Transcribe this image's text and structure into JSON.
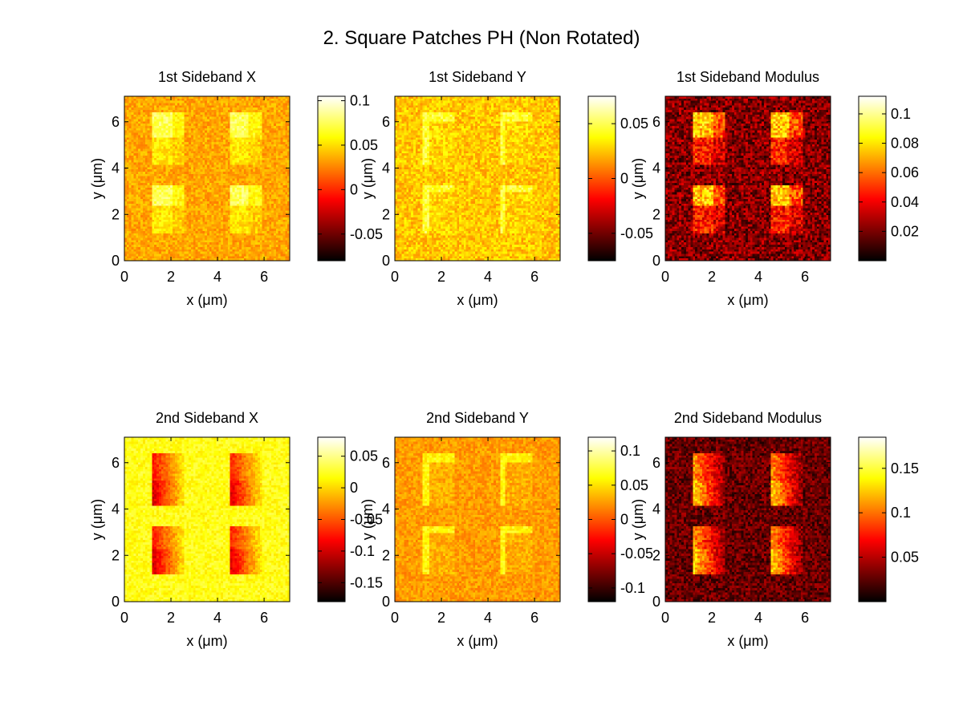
{
  "figure": {
    "title": "2. Square Patches PH (Non Rotated)",
    "colormap": "hot",
    "colormap_stops": [
      "#000000",
      "#ff0000",
      "#ffff00",
      "#ffffff"
    ],
    "background": "#ffffff"
  },
  "chart_data": [
    {
      "type": "heatmap",
      "title": "1st Sideband X",
      "xlabel": "x (µm)",
      "ylabel": "y (µm)",
      "xlim": [
        0,
        7.1
      ],
      "ylim": [
        7.1,
        0
      ],
      "xticks": [
        0,
        2,
        4,
        6
      ],
      "yticks": [
        0,
        2,
        4,
        6
      ],
      "clim": [
        -0.08,
        0.105
      ],
      "cbar_ticks": [
        {
          "v": 0.1,
          "t": "0.1"
        },
        {
          "v": 0.05,
          "t": "0.05"
        },
        {
          "v": 0,
          "t": "0"
        },
        {
          "v": -0.05,
          "t": "-0.05"
        }
      ],
      "features": {
        "base": 0.035,
        "noise": 0.012,
        "patch_value": 0.075,
        "patch_mode": "x1"
      }
    },
    {
      "type": "heatmap",
      "title": "1st Sideband Y",
      "xlabel": "x (µm)",
      "ylabel": "y (µm)",
      "xlim": [
        0,
        7.1
      ],
      "ylim": [
        7.1,
        0
      ],
      "xticks": [
        0,
        2,
        4,
        6
      ],
      "yticks": [
        0,
        2,
        4,
        6
      ],
      "clim": [
        -0.075,
        0.075
      ],
      "cbar_ticks": [
        {
          "v": 0.05,
          "t": "0.05"
        },
        {
          "v": 0,
          "t": "0"
        },
        {
          "v": -0.05,
          "t": "-0.05"
        }
      ],
      "features": {
        "base": 0.025,
        "noise": 0.012,
        "patch_value": 0.045,
        "patch_mode": "edge"
      }
    },
    {
      "type": "heatmap",
      "title": "1st Sideband Modulus",
      "xlabel": "x (µm)",
      "ylabel": "y (µm)",
      "xlim": [
        0,
        7.1
      ],
      "ylim": [
        7.1,
        0
      ],
      "xticks": [
        0,
        2,
        4,
        6
      ],
      "yticks": [
        0,
        2,
        4,
        6
      ],
      "clim": [
        0,
        0.112
      ],
      "cbar_ticks": [
        {
          "v": 0.1,
          "t": "0.1"
        },
        {
          "v": 0.08,
          "t": "0.08"
        },
        {
          "v": 0.06,
          "t": "0.06"
        },
        {
          "v": 0.04,
          "t": "0.04"
        },
        {
          "v": 0.02,
          "t": "0.02"
        }
      ],
      "features": {
        "base": 0.022,
        "noise": 0.016,
        "patch_value": 0.075,
        "patch_mode": "x1"
      }
    },
    {
      "type": "heatmap",
      "title": "2nd Sideband X",
      "xlabel": "x (µm)",
      "ylabel": "y (µm)",
      "xlim": [
        0,
        7.1
      ],
      "ylim": [
        7.1,
        0
      ],
      "xticks": [
        0,
        2,
        4,
        6
      ],
      "yticks": [
        0,
        2,
        4,
        6
      ],
      "clim": [
        -0.18,
        0.08
      ],
      "cbar_ticks": [
        {
          "v": 0.05,
          "t": "0.05"
        },
        {
          "v": 0,
          "t": "0"
        },
        {
          "v": -0.05,
          "t": "-0.05"
        },
        {
          "v": -0.1,
          "t": "-0.1"
        },
        {
          "v": -0.15,
          "t": "-0.15"
        }
      ],
      "features": {
        "base": 0.02,
        "noise": 0.015,
        "patch_value": -0.1,
        "patch_mode": "x2"
      }
    },
    {
      "type": "heatmap",
      "title": "2nd Sideband Y",
      "xlabel": "x (µm)",
      "ylabel": "y (µm)",
      "xlim": [
        0,
        7.1
      ],
      "ylim": [
        7.1,
        0
      ],
      "xticks": [
        0,
        2,
        4,
        6
      ],
      "yticks": [
        0,
        2,
        4,
        6
      ],
      "clim": [
        -0.12,
        0.12
      ],
      "cbar_ticks": [
        {
          "v": 0.1,
          "t": "0.1"
        },
        {
          "v": 0.05,
          "t": "0.05"
        },
        {
          "v": 0,
          "t": "0"
        },
        {
          "v": -0.05,
          "t": "-0.05"
        },
        {
          "v": -0.1,
          "t": "-0.1"
        }
      ],
      "features": {
        "base": 0.025,
        "noise": 0.014,
        "patch_value": 0.06,
        "patch_mode": "edge"
      }
    },
    {
      "type": "heatmap",
      "title": "2nd Sideband Modulus",
      "xlabel": "x (µm)",
      "ylabel": "y (µm)",
      "xlim": [
        0,
        7.1
      ],
      "ylim": [
        7.1,
        0
      ],
      "xticks": [
        0,
        2,
        4,
        6
      ],
      "yticks": [
        0,
        2,
        4,
        6
      ],
      "clim": [
        0,
        0.185
      ],
      "cbar_ticks": [
        {
          "v": 0.15,
          "t": "0.15"
        },
        {
          "v": 0.1,
          "t": "0.1"
        },
        {
          "v": 0.05,
          "t": "0.05"
        }
      ],
      "features": {
        "base": 0.028,
        "noise": 0.02,
        "patch_value": 0.13,
        "patch_mode": "x2"
      }
    }
  ]
}
